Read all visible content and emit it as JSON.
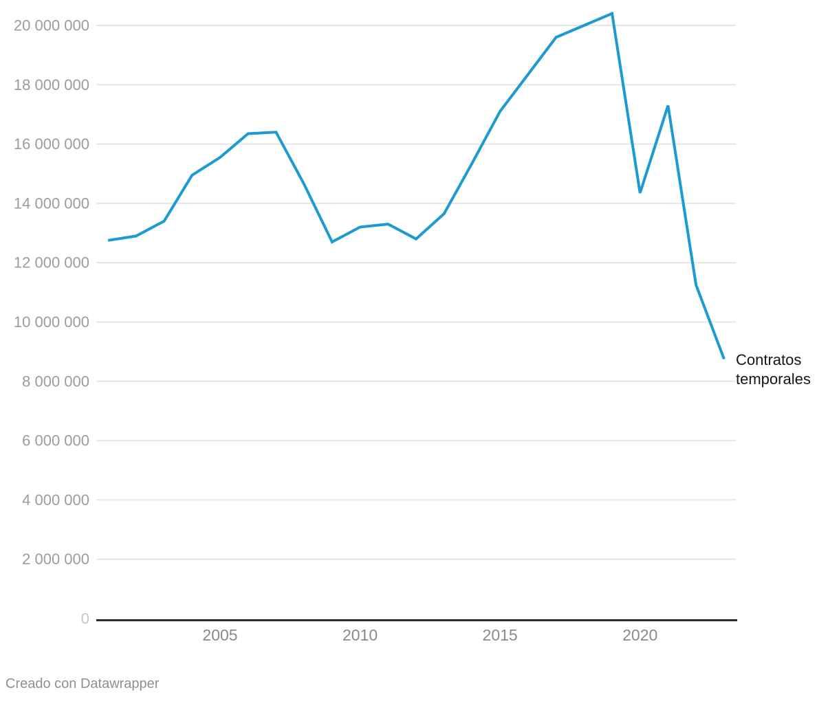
{
  "chart_data": {
    "type": "line",
    "title": "",
    "xlabel": "",
    "ylabel": "",
    "grid": "horizontal",
    "legend_position": "end-of-line-label",
    "annotation": "Contratos temporales",
    "line_color": "#1c9bd0",
    "x": [
      2001,
      2002,
      2003,
      2004,
      2005,
      2006,
      2007,
      2008,
      2009,
      2010,
      2011,
      2012,
      2013,
      2014,
      2015,
      2016,
      2017,
      2018,
      2019,
      2020,
      2021,
      2022,
      2023
    ],
    "series": [
      {
        "name": "Contratos temporales",
        "values": [
          12750000,
          12900000,
          13400000,
          14950000,
          15550000,
          16350000,
          16400000,
          14650000,
          12700000,
          13200000,
          13300000,
          12800000,
          13650000,
          15350000,
          17100000,
          18350000,
          19600000,
          20000000,
          20400000,
          14350000,
          17300000,
          11250000,
          8750000
        ]
      }
    ],
    "xlim": [
      2001,
      2023
    ],
    "ylim": [
      0,
      20000000
    ],
    "x_ticks": {
      "values": [
        2005,
        2010,
        2015,
        2020
      ],
      "labels": [
        "2005",
        "2010",
        "2015",
        "2020"
      ]
    },
    "y_ticks": {
      "values": [
        0,
        2000000,
        4000000,
        6000000,
        8000000,
        10000000,
        12000000,
        14000000,
        16000000,
        18000000,
        20000000
      ],
      "labels": [
        "0",
        "2 000 000",
        "4 000 000",
        "6 000 000",
        "8 000 000",
        "10 000 000",
        "12 000 000",
        "14 000 000",
        "16 000 000",
        "18 000 000",
        "20 000 000"
      ]
    }
  },
  "colors": {
    "line": "#1c9bd0",
    "gridline": "#e6e6e6",
    "axis_line": "#2b2b2b",
    "y_tick_label": "#9c9c9c",
    "y_zero_label": "#c6c6c6",
    "x_tick_label": "#8a8a8a",
    "annotation_text": "#161616",
    "footer_text": "#8f8f8f",
    "background": "#ffffff"
  },
  "footer": {
    "credit": "Creado con Datawrapper"
  }
}
